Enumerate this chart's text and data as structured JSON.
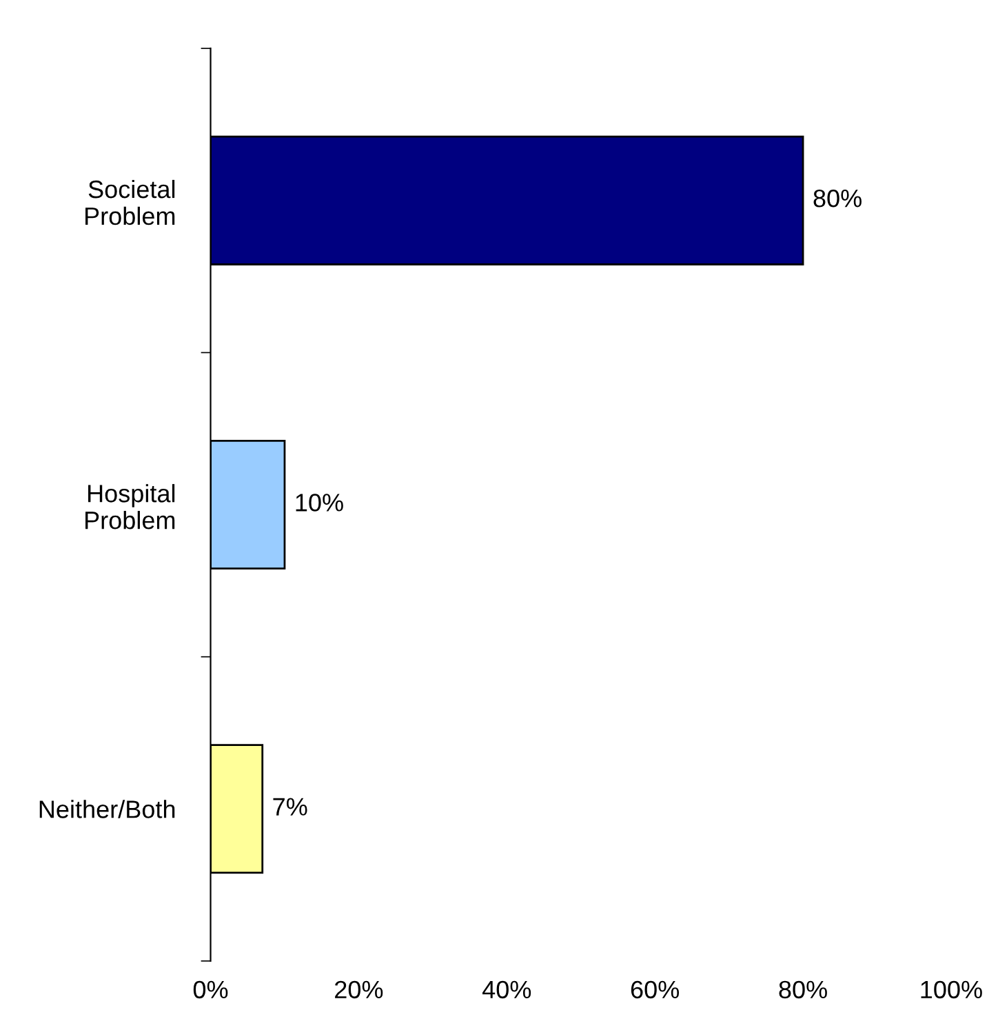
{
  "chart_data": {
    "type": "bar",
    "orientation": "horizontal",
    "categories": [
      "Societal\nProblem",
      "Hospital\nProblem",
      "Neither/Both"
    ],
    "values": [
      80,
      10,
      7
    ],
    "colors": [
      "#000080",
      "#99ccff",
      "#ffff99"
    ],
    "value_labels": [
      "80%",
      "10%",
      "7%"
    ],
    "xlim": [
      0,
      100
    ],
    "xticks": [
      {
        "value": 0,
        "label": "0%"
      },
      {
        "value": 20,
        "label": "20%"
      },
      {
        "value": 40,
        "label": "40%"
      },
      {
        "value": 60,
        "label": "60%"
      },
      {
        "value": 80,
        "label": "80%"
      },
      {
        "value": 100,
        "label": "100%"
      }
    ],
    "grid": false,
    "legend": false
  }
}
